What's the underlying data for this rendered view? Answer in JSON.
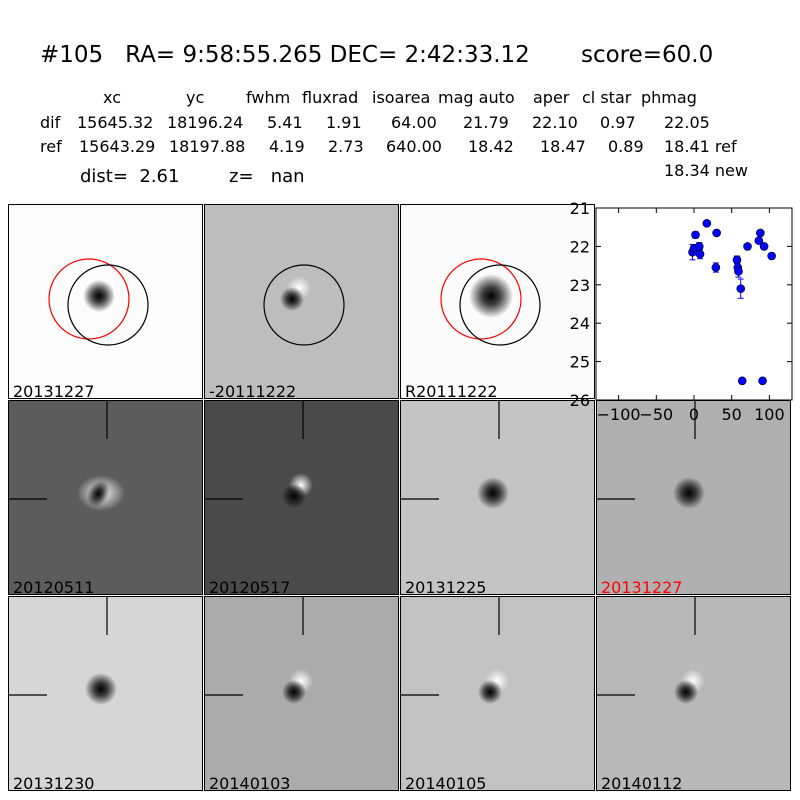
{
  "header": {
    "title": "#105   RA= 9:58:55.265 DEC= 2:42:33.12       score=60.0",
    "columns": [
      "xc",
      "yc",
      "fwhm",
      "fluxrad",
      "isoarea",
      "mag auto",
      "aper",
      "cl star",
      "phmag"
    ],
    "dif_row": {
      "label": "dif",
      "values": [
        "15645.32",
        "18196.24",
        "5.41",
        "1.91",
        "64.00",
        "21.79",
        "22.10",
        "0.97",
        "22.05"
      ]
    },
    "ref_row": {
      "label": "ref",
      "values": [
        "15643.29",
        "18197.88",
        "4.19",
        "2.73",
        "640.00",
        "18.42",
        "18.47",
        "0.89",
        "18.41 ref"
      ]
    },
    "new_phmag": "18.34 new",
    "dist": "dist=  2.61",
    "z": "z=   nan"
  },
  "stamps": [
    {
      "label": "20131227",
      "style": "new",
      "bg": "#fcfcfc",
      "blob": "dark",
      "circles": [
        "red",
        "black"
      ]
    },
    {
      "label": "-20111222",
      "style": "diff",
      "bg": "#bdbdbd",
      "blob": "dipole",
      "circles": [
        "black"
      ]
    },
    {
      "label": "R20111222",
      "style": "ref",
      "bg": "#fbfbfb",
      "blob": "dark_big",
      "circles": [
        "red",
        "black"
      ]
    },
    {
      "label": "20120511",
      "style": "crosshair",
      "bg": "#5c5c5c",
      "blob": "ring",
      "label_color": "#000000"
    },
    {
      "label": "20120517",
      "style": "crosshair",
      "bg": "#4a4a4a",
      "blob": "dipole_light",
      "label_color": "#000000"
    },
    {
      "label": "20131225",
      "style": "crosshair",
      "bg": "#c4c4c4",
      "blob": "dark",
      "label_color": "#000000"
    },
    {
      "label": "20131227",
      "style": "crosshair",
      "bg": "#b0b0b0",
      "blob": "dark",
      "label_color": "#ff0000"
    },
    {
      "label": "20131230",
      "style": "crosshair",
      "bg": "#d6d6d6",
      "blob": "dark",
      "label_color": "#000000"
    },
    {
      "label": "20140103",
      "style": "crosshair",
      "bg": "#ababab",
      "blob": "dipole",
      "label_color": "#000000"
    },
    {
      "label": "20140105",
      "style": "crosshair",
      "bg": "#c2c2c2",
      "blob": "dipole",
      "label_color": "#000000"
    },
    {
      "label": "20140112",
      "style": "crosshair",
      "bg": "#b8b8b8",
      "blob": "dipole",
      "label_color": "#000000"
    }
  ],
  "chart_data": {
    "type": "scatter",
    "xlim": [
      -130,
      130
    ],
    "ylim": [
      26,
      21
    ],
    "inverted_y": true,
    "xticks": [
      "−100",
      "−50",
      "0",
      "50",
      "100"
    ],
    "yticks": [
      "21",
      "22",
      "23",
      "24",
      "25",
      "26"
    ],
    "color": "#0000ff",
    "points": [
      {
        "x": -2,
        "y": 22.15,
        "err": 0.2
      },
      {
        "x": 0,
        "y": 22.05,
        "err": 0.1
      },
      {
        "x": 2,
        "y": 21.7,
        "err": 0.08
      },
      {
        "x": 5,
        "y": 22.1,
        "err": 0.12
      },
      {
        "x": 7,
        "y": 22.0,
        "err": 0.1
      },
      {
        "x": 8,
        "y": 22.2,
        "err": 0.12
      },
      {
        "x": 17,
        "y": 21.4,
        "err": 0.05
      },
      {
        "x": 29,
        "y": 22.55,
        "err": 0.12
      },
      {
        "x": 30,
        "y": 21.65,
        "err": 0.05
      },
      {
        "x": 57,
        "y": 22.35,
        "err": 0.1
      },
      {
        "x": 58,
        "y": 22.55,
        "err": 0.12
      },
      {
        "x": 59,
        "y": 22.65,
        "err": 0.15
      },
      {
        "x": 62,
        "y": 23.1,
        "err": 0.25
      },
      {
        "x": 64,
        "y": 25.5,
        "err": 0.05
      },
      {
        "x": 71,
        "y": 22.0,
        "err": 0.05
      },
      {
        "x": 86,
        "y": 21.85,
        "err": 0.05
      },
      {
        "x": 88,
        "y": 21.65,
        "err": 0.05
      },
      {
        "x": 91,
        "y": 25.5,
        "err": 0.05
      },
      {
        "x": 93,
        "y": 22.0,
        "err": 0.05
      },
      {
        "x": 103,
        "y": 22.25,
        "err": 0.07
      }
    ]
  }
}
